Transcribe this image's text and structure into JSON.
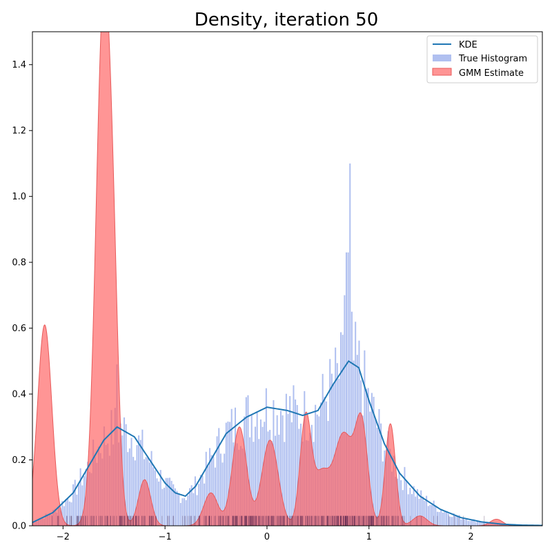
{
  "chart_data": {
    "type": "area",
    "title": "Density, iteration 50",
    "xlabel": "",
    "ylabel": "",
    "xlim": [
      -2.3,
      2.7
    ],
    "ylim": [
      0,
      1.5
    ],
    "xticks": [
      -2,
      -1,
      0,
      1,
      2
    ],
    "yticks": [
      0.0,
      0.2,
      0.4,
      0.6,
      0.8,
      1.0,
      1.2,
      1.4
    ],
    "xtick_labels": [
      "−2",
      "−1",
      "0",
      "1",
      "2"
    ],
    "ytick_labels": [
      "0.0",
      "0.2",
      "0.4",
      "0.6",
      "0.8",
      "1.0",
      "1.2",
      "1.4"
    ],
    "grid": false,
    "legend_position": "top-right",
    "colors": {
      "kde": "#1f77b4",
      "histogram": "#8fa5ea",
      "gmm": "#ff5c5c",
      "gmm_edge": "#e85a5a",
      "rug": "#2a0a3a"
    },
    "series": [
      {
        "name": "KDE",
        "kind": "line",
        "x": [
          -2.3,
          -2.1,
          -1.9,
          -1.75,
          -1.6,
          -1.47,
          -1.3,
          -1.15,
          -1.0,
          -0.9,
          -0.8,
          -0.7,
          -0.55,
          -0.4,
          -0.2,
          0.0,
          0.2,
          0.35,
          0.5,
          0.65,
          0.8,
          0.9,
          1.0,
          1.15,
          1.3,
          1.5,
          1.7,
          1.9,
          2.1,
          2.3,
          2.5,
          2.7
        ],
        "y": [
          0.01,
          0.04,
          0.1,
          0.18,
          0.26,
          0.3,
          0.27,
          0.2,
          0.13,
          0.1,
          0.09,
          0.12,
          0.2,
          0.28,
          0.33,
          0.36,
          0.35,
          0.335,
          0.35,
          0.43,
          0.5,
          0.48,
          0.38,
          0.25,
          0.16,
          0.09,
          0.05,
          0.025,
          0.012,
          0.005,
          0.002,
          0.001
        ]
      },
      {
        "name": "True Histogram",
        "kind": "histogram",
        "x": [
          -2.3,
          -2.1,
          -1.9,
          -1.75,
          -1.6,
          -1.47,
          -1.3,
          -1.15,
          -1.0,
          -0.9,
          -0.8,
          -0.7,
          -0.55,
          -0.4,
          -0.2,
          0.0,
          0.2,
          0.35,
          0.5,
          0.65,
          0.8,
          0.9,
          1.0,
          1.15,
          1.3,
          1.5,
          1.7,
          1.9,
          2.1,
          2.3,
          2.5,
          2.7
        ],
        "y": [
          0.01,
          0.04,
          0.1,
          0.18,
          0.26,
          0.3,
          0.27,
          0.2,
          0.13,
          0.1,
          0.09,
          0.12,
          0.2,
          0.28,
          0.33,
          0.36,
          0.35,
          0.335,
          0.35,
          0.43,
          0.5,
          0.48,
          0.38,
          0.25,
          0.16,
          0.09,
          0.05,
          0.025,
          0.012,
          0.005,
          0.002,
          0.001
        ],
        "spikes": [
          [
            0.81,
            1.1
          ],
          [
            0.79,
            0.83
          ],
          [
            0.77,
            0.7
          ],
          [
            0.84,
            0.65
          ],
          [
            -1.47,
            0.49
          ],
          [
            0.75,
            0.58
          ],
          [
            0.87,
            0.6
          ]
        ]
      },
      {
        "name": "GMM Estimate",
        "kind": "area",
        "components": [
          {
            "mu": -2.18,
            "sigma": 0.07,
            "peak": 0.61
          },
          {
            "mu": -1.6,
            "sigma": 0.075,
            "peak": 1.6
          },
          {
            "mu": -1.5,
            "sigma": 0.05,
            "peak": 0.35
          },
          {
            "mu": -1.2,
            "sigma": 0.06,
            "peak": 0.14
          },
          {
            "mu": -0.55,
            "sigma": 0.07,
            "peak": 0.1
          },
          {
            "mu": -0.27,
            "sigma": 0.07,
            "peak": 0.3
          },
          {
            "mu": 0.03,
            "sigma": 0.08,
            "peak": 0.26
          },
          {
            "mu": 0.38,
            "sigma": 0.055,
            "peak": 0.33
          },
          {
            "mu": 0.53,
            "sigma": 0.07,
            "peak": 0.14
          },
          {
            "mu": 0.75,
            "sigma": 0.1,
            "peak": 0.28
          },
          {
            "mu": 0.93,
            "sigma": 0.06,
            "peak": 0.28
          },
          {
            "mu": 1.21,
            "sigma": 0.05,
            "peak": 0.31
          },
          {
            "mu": 1.5,
            "sigma": 0.07,
            "peak": 0.03
          },
          {
            "mu": 2.25,
            "sigma": 0.06,
            "peak": 0.02
          }
        ]
      }
    ]
  },
  "legend": {
    "entries": [
      "KDE",
      "True Histogram",
      "GMM Estimate"
    ]
  }
}
